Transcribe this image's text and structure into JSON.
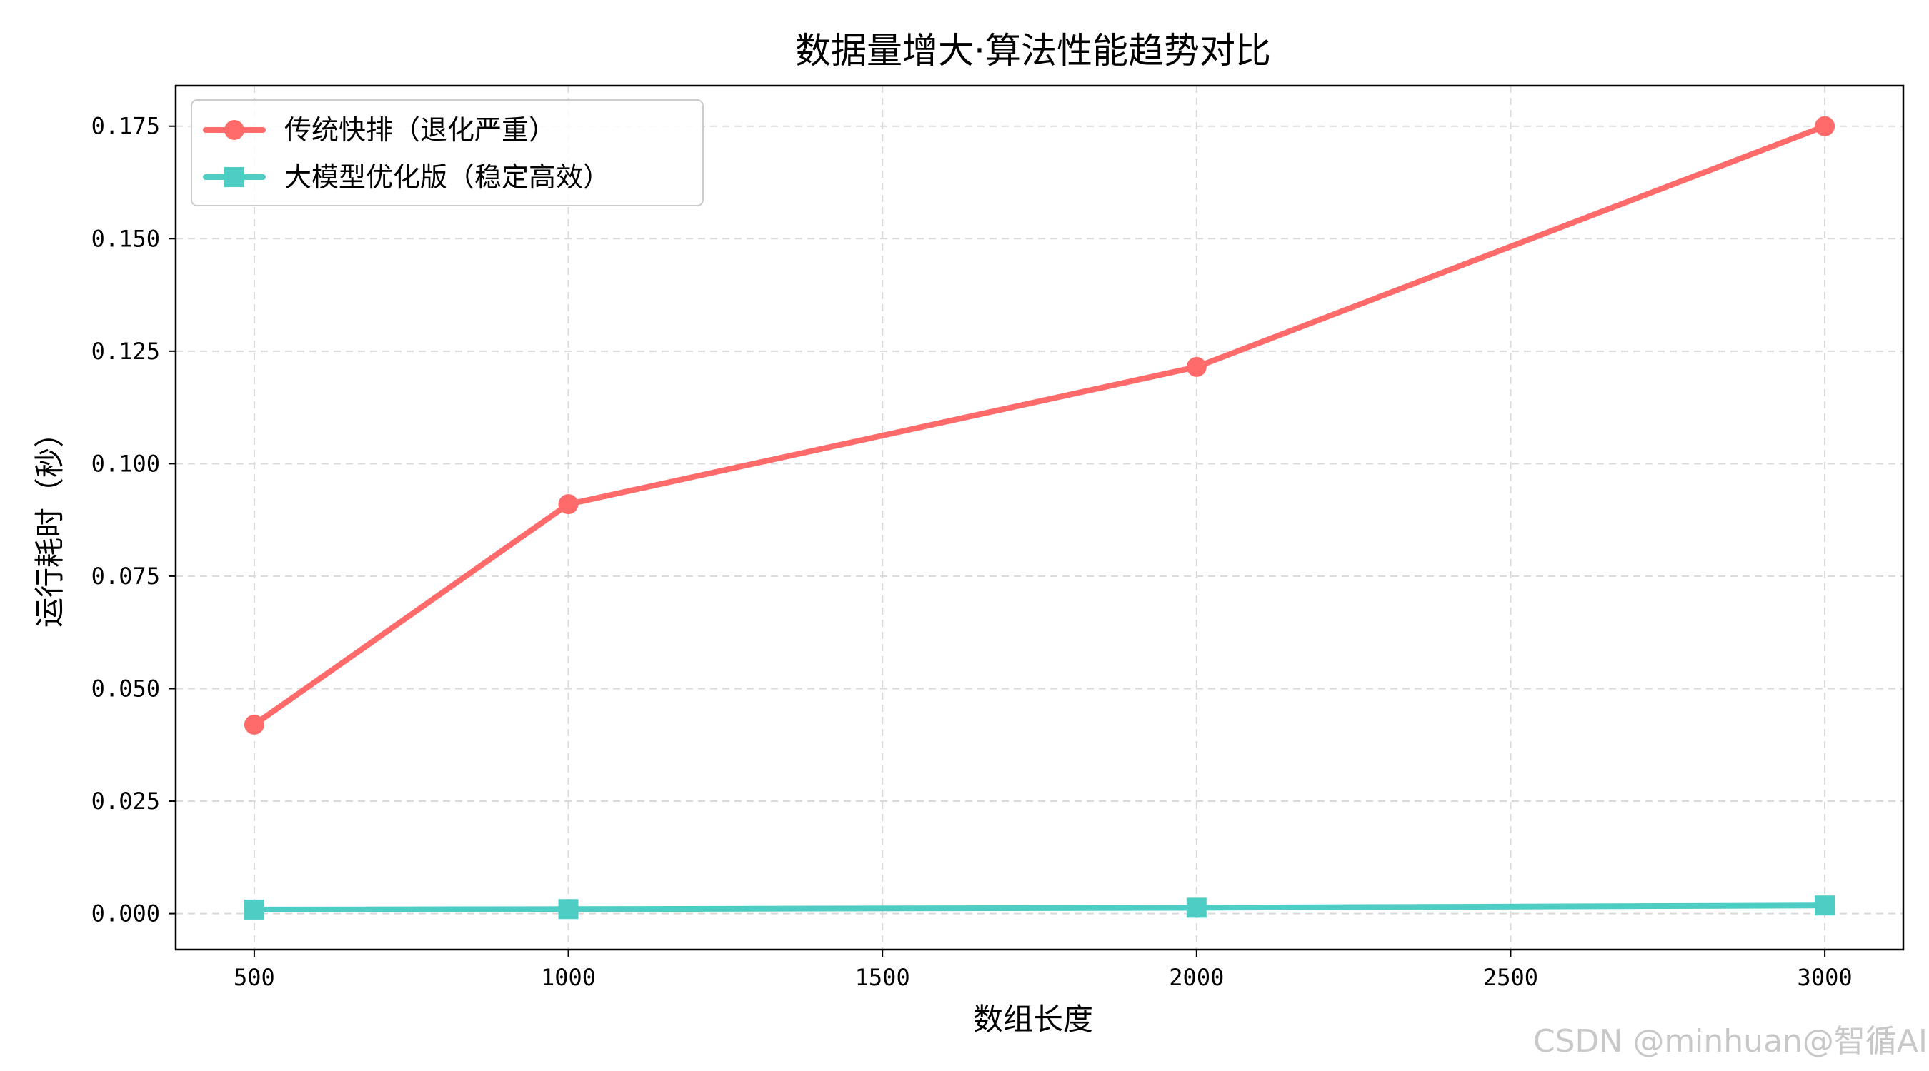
{
  "chart_data": {
    "type": "line",
    "title": "数据量增大·算法性能趋势对比",
    "xlabel": "数组长度",
    "ylabel": "运行耗时（秒）",
    "x": [
      500,
      1000,
      2000,
      3000
    ],
    "xlim": [
      375,
      3125
    ],
    "ylim": [
      -0.008,
      0.184
    ],
    "xticks": [
      500,
      1000,
      1500,
      2000,
      2500,
      3000
    ],
    "xtick_labels": [
      "500",
      "1000",
      "1500",
      "2000",
      "2500",
      "3000"
    ],
    "yticks": [
      0.0,
      0.025,
      0.05,
      0.075,
      0.1,
      0.125,
      0.15,
      0.175
    ],
    "ytick_labels": [
      "0.000",
      "0.025",
      "0.050",
      "0.075",
      "0.100",
      "0.125",
      "0.150",
      "0.175"
    ],
    "grid": true,
    "legend_position": "top-left",
    "series": [
      {
        "name": "传统快排（退化严重）",
        "values": [
          0.042,
          0.091,
          0.1215,
          0.175
        ],
        "color": "#ff6b6b",
        "marker": "circle"
      },
      {
        "name": "大模型优化版（稳定高效）",
        "values": [
          0.0009,
          0.001,
          0.0013,
          0.0018
        ],
        "color": "#4ecdc4",
        "marker": "square"
      }
    ]
  },
  "watermark": "CSDN @minhuan@智循AI"
}
